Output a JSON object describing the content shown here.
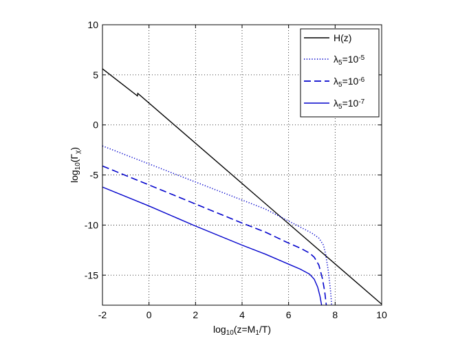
{
  "chart_data": {
    "type": "line",
    "title": "",
    "xlabel": {
      "base": "log",
      "sub": "10",
      "text": "(z=M",
      "sub2": "1",
      "text2": "/T)"
    },
    "ylabel": {
      "base": "log",
      "sub": "10",
      "text": "(Γ",
      "sub2": "χ",
      "text2": ")"
    },
    "xlim": [
      -2,
      10
    ],
    "ylim": [
      -18,
      10
    ],
    "xticks": [
      -2,
      0,
      2,
      4,
      6,
      8,
      10
    ],
    "yticks": [
      -15,
      -10,
      -5,
      0,
      5,
      10
    ],
    "xtick_labels": [
      "-2",
      "0",
      "2",
      "4",
      "6",
      "8",
      "10"
    ],
    "ytick_labels": [
      "-15",
      "-10",
      "-5",
      "0",
      "5",
      "10"
    ],
    "grid": true,
    "legend_position": "top-right",
    "series": [
      {
        "name": "H(z)",
        "legend": {
          "main": "H(z)"
        },
        "color": "#000000",
        "style": "solid",
        "points": [
          [
            -2,
            5.6
          ],
          [
            -0.5,
            2.9
          ],
          [
            -0.48,
            3.15
          ],
          [
            10,
            -17.9
          ]
        ]
      },
      {
        "name": "λ5=10^-5",
        "legend": {
          "sym": "λ",
          "sub": "5",
          "mid": "=10",
          "sup": "-5"
        },
        "color": "#0000cc",
        "style": "dotted",
        "points": [
          [
            -2,
            -2.1
          ],
          [
            0,
            -3.9
          ],
          [
            2,
            -5.7
          ],
          [
            4,
            -7.5
          ],
          [
            5,
            -8.4
          ],
          [
            6,
            -9.6
          ],
          [
            6.5,
            -10.2
          ],
          [
            7,
            -10.8
          ],
          [
            7.3,
            -11.3
          ],
          [
            7.5,
            -12.0
          ],
          [
            7.6,
            -13.0
          ],
          [
            7.7,
            -14.5
          ],
          [
            7.8,
            -16.5
          ],
          [
            7.85,
            -18
          ]
        ]
      },
      {
        "name": "λ5=10^-6",
        "legend": {
          "sym": "λ",
          "sub": "5",
          "mid": "=10",
          "sup": "-6"
        },
        "color": "#0000cc",
        "style": "dashed",
        "points": [
          [
            -2,
            -4.1
          ],
          [
            0,
            -6.0
          ],
          [
            2,
            -7.9
          ],
          [
            4,
            -9.8
          ],
          [
            5,
            -10.7
          ],
          [
            6,
            -11.8
          ],
          [
            6.5,
            -12.3
          ],
          [
            6.9,
            -12.8
          ],
          [
            7.1,
            -13.2
          ],
          [
            7.3,
            -14.0
          ],
          [
            7.45,
            -15.3
          ],
          [
            7.55,
            -16.6
          ],
          [
            7.62,
            -18
          ]
        ]
      },
      {
        "name": "λ5=10^-7",
        "legend": {
          "sym": "λ",
          "sub": "5",
          "mid": "=10",
          "sup": "-7"
        },
        "color": "#0000cc",
        "style": "solid",
        "points": [
          [
            -2,
            -6.2
          ],
          [
            0,
            -8.1
          ],
          [
            2,
            -10.1
          ],
          [
            4,
            -12.0
          ],
          [
            5,
            -12.9
          ],
          [
            6,
            -13.9
          ],
          [
            6.5,
            -14.4
          ],
          [
            6.9,
            -14.9
          ],
          [
            7.1,
            -15.4
          ],
          [
            7.25,
            -16.2
          ],
          [
            7.35,
            -17.1
          ],
          [
            7.42,
            -18
          ]
        ]
      }
    ]
  }
}
